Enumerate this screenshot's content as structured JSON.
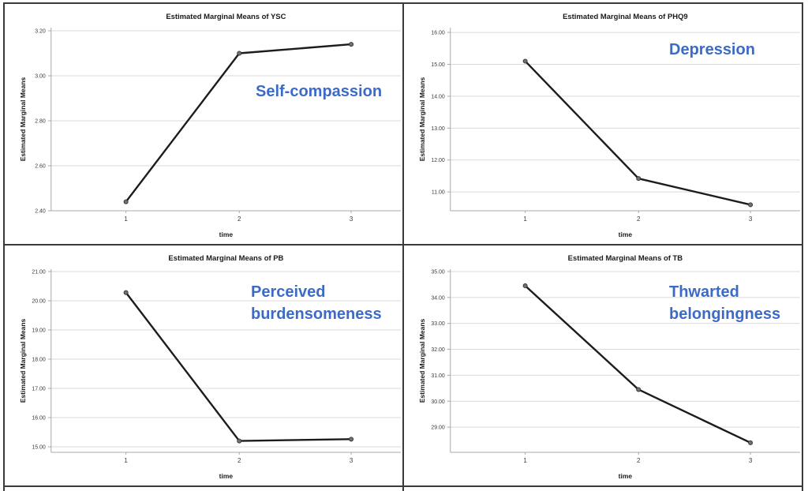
{
  "colors": {
    "annotation_blue": "#3c6bc7",
    "line": "#1c1c1c",
    "marker_fill": "#707070",
    "marker_edge": "#2b2b2b",
    "grid_line": "#d9d9d9",
    "axis_line": "#a9a9a9",
    "border": "#3a3a3a",
    "title_text": "#1a1a1a",
    "tick_text": "#3a3a3a",
    "background": "#ffffff"
  },
  "chart_data": [
    {
      "type": "line",
      "position": "top-left",
      "title": "Estimated Marginal Means of YSC",
      "xlabel": "time",
      "ylabel": "Estimated Marginal Means",
      "annotation": "Self-compassion",
      "annotation_pos": {
        "x": 318,
        "y": 97
      },
      "x": [
        1,
        2,
        3
      ],
      "xtick_labels": [
        "1",
        "2",
        "3"
      ],
      "values": [
        2.44,
        3.1,
        3.14
      ],
      "yticks": [
        2.4,
        2.6,
        2.8,
        3.0,
        3.2
      ],
      "ytick_labels": [
        "2.40",
        "2.60",
        "2.80",
        "3.00",
        "3.20"
      ],
      "ylim": [
        2.4,
        3.214
      ],
      "grid": "horizontal",
      "legend": "none"
    },
    {
      "type": "line",
      "position": "top-right",
      "title": "Estimated Marginal Means of PHQ9",
      "xlabel": "time",
      "ylabel": "Estimated Marginal Means",
      "annotation": "Depression",
      "annotation_pos": {
        "x": 336,
        "y": 44
      },
      "x": [
        1,
        2,
        3
      ],
      "xtick_labels": [
        "1",
        "2",
        "3"
      ],
      "values": [
        15.1,
        11.42,
        10.6
      ],
      "yticks": [
        11.0,
        12.0,
        13.0,
        14.0,
        15.0,
        16.0
      ],
      "ytick_labels": [
        "11.00",
        "12.00",
        "13.00",
        "14.00",
        "15.00",
        "16.00"
      ],
      "ylim": [
        10.41,
        16.15
      ],
      "grid": "horizontal",
      "legend": "none"
    },
    {
      "type": "line",
      "position": "bottom-left",
      "title": "Estimated Marginal Means of PB",
      "xlabel": "time",
      "ylabel": "Estimated Marginal Means",
      "annotation": "Perceived\nburdensomeness",
      "annotation_pos": {
        "x": 312,
        "y": 45
      },
      "x": [
        1,
        2,
        3
      ],
      "xtick_labels": [
        "1",
        "2",
        "3"
      ],
      "values": [
        20.28,
        15.2,
        15.26
      ],
      "yticks": [
        15.0,
        16.0,
        17.0,
        18.0,
        19.0,
        20.0,
        21.0
      ],
      "ytick_labels": [
        "15.00",
        "16.00",
        "17.00",
        "18.00",
        "19.00",
        "20.00",
        "21.00"
      ],
      "ylim": [
        14.81,
        21.08
      ],
      "grid": "horizontal",
      "legend": "none"
    },
    {
      "type": "line",
      "position": "bottom-right",
      "title": "Estimated Marginal Means of TB",
      "xlabel": "time",
      "ylabel": "Estimated Marginal Means",
      "annotation": "Thwarted\nbelongingness",
      "annotation_pos": {
        "x": 336,
        "y": 45
      },
      "x": [
        1,
        2,
        3
      ],
      "xtick_labels": [
        "1",
        "2",
        "3"
      ],
      "values": [
        34.45,
        30.45,
        28.4
      ],
      "yticks": [
        29.0,
        30.0,
        31.0,
        32.0,
        33.0,
        34.0,
        35.0
      ],
      "ytick_labels": [
        "29.00",
        "30.00",
        "31.00",
        "32.00",
        "33.00",
        "34.00",
        "35.00"
      ],
      "ylim": [
        28.03,
        35.09
      ],
      "grid": "horizontal",
      "legend": "none"
    }
  ]
}
